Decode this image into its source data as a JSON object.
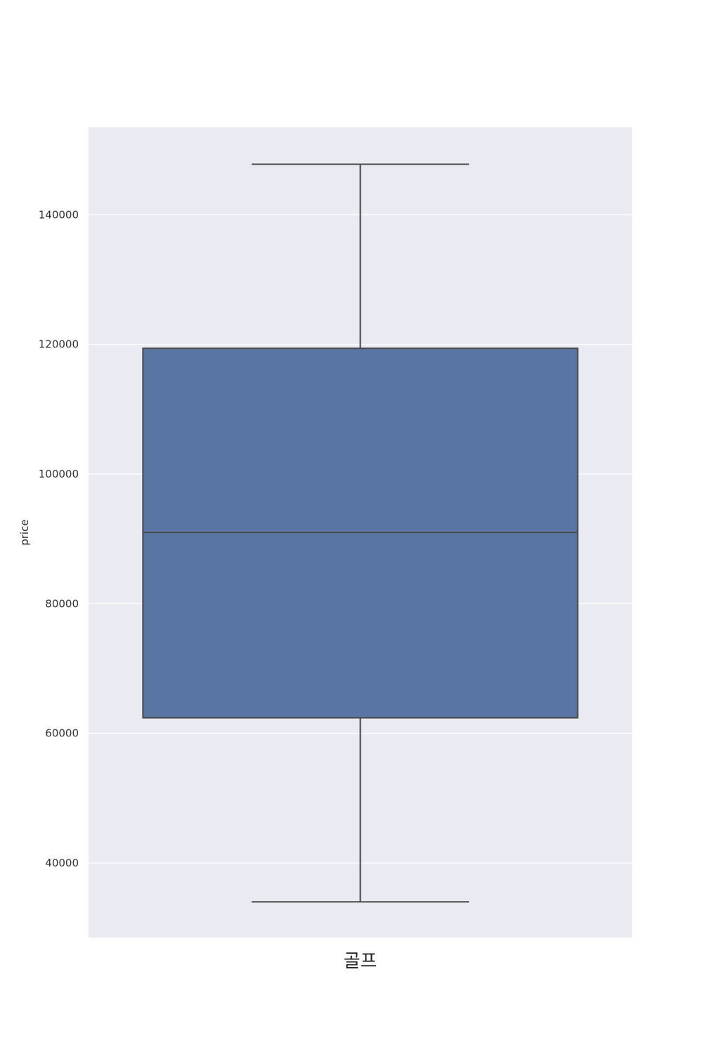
{
  "chart_data": {
    "type": "box",
    "categories": [
      "골프"
    ],
    "xlabel": "",
    "ylabel": "price",
    "yticks": [
      40000,
      60000,
      80000,
      100000,
      120000,
      140000
    ],
    "ylim": [
      28500,
      153500
    ],
    "grid": true,
    "colors": {
      "box": "#5975a4",
      "background": "#eaeaf2",
      "grid": "#ffffff",
      "line": "#4a4a4a"
    },
    "boxes": [
      {
        "category": "골프",
        "whisker_low": 34000,
        "q1": 62400,
        "median": 91000,
        "q3": 119400,
        "whisker_high": 147800
      }
    ]
  }
}
